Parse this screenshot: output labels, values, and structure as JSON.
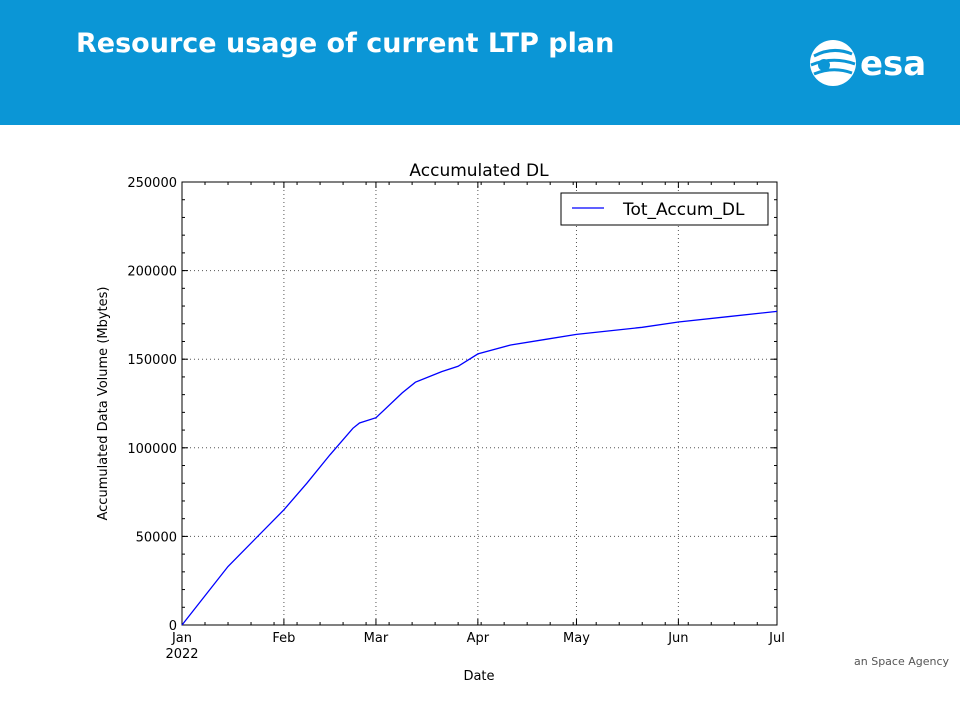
{
  "slide": {
    "title": "Resource usage of current LTP plan",
    "logo_text": "esa",
    "footer_text": "an Space Agency",
    "header_color": "#0b96d6"
  },
  "chart_data": {
    "type": "line",
    "title": "Accumulated DL",
    "xlabel": "Date",
    "ylabel": "Accumulated Data Volume (Mbytes)",
    "xlim": [
      "2022-01-01",
      "2022-07-01"
    ],
    "ylim": [
      0,
      250000
    ],
    "yticks": [
      0,
      50000,
      100000,
      150000,
      200000,
      250000
    ],
    "yticklabels": [
      "0",
      "50000",
      "100000",
      "150000",
      "200000",
      "250000"
    ],
    "xticks": [
      "2022-01-01",
      "2022-02-01",
      "2022-03-01",
      "2022-04-01",
      "2022-05-01",
      "2022-06-01",
      "2022-07-01"
    ],
    "xticklabels": [
      "Jan",
      "Feb",
      "Mar",
      "Apr",
      "May",
      "Jun",
      "Jul"
    ],
    "xtick_year": "2022",
    "grid": true,
    "legend_position": "top-right",
    "series": [
      {
        "name": "Tot_Accum_DL",
        "color": "#0000ff",
        "x": [
          "2022-01-01",
          "2022-01-15",
          "2022-02-01",
          "2022-02-08",
          "2022-02-15",
          "2022-02-22",
          "2022-02-24",
          "2022-03-01",
          "2022-03-09",
          "2022-03-13",
          "2022-03-21",
          "2022-03-26",
          "2022-04-01",
          "2022-04-11",
          "2022-04-21",
          "2022-05-01",
          "2022-05-21",
          "2022-06-01",
          "2022-06-16",
          "2022-07-01"
        ],
        "y": [
          0,
          33000,
          65000,
          80000,
          96000,
          111000,
          114000,
          117000,
          131000,
          137000,
          143000,
          146000,
          153000,
          158000,
          161000,
          164000,
          168000,
          171000,
          174000,
          177000
        ]
      }
    ]
  }
}
